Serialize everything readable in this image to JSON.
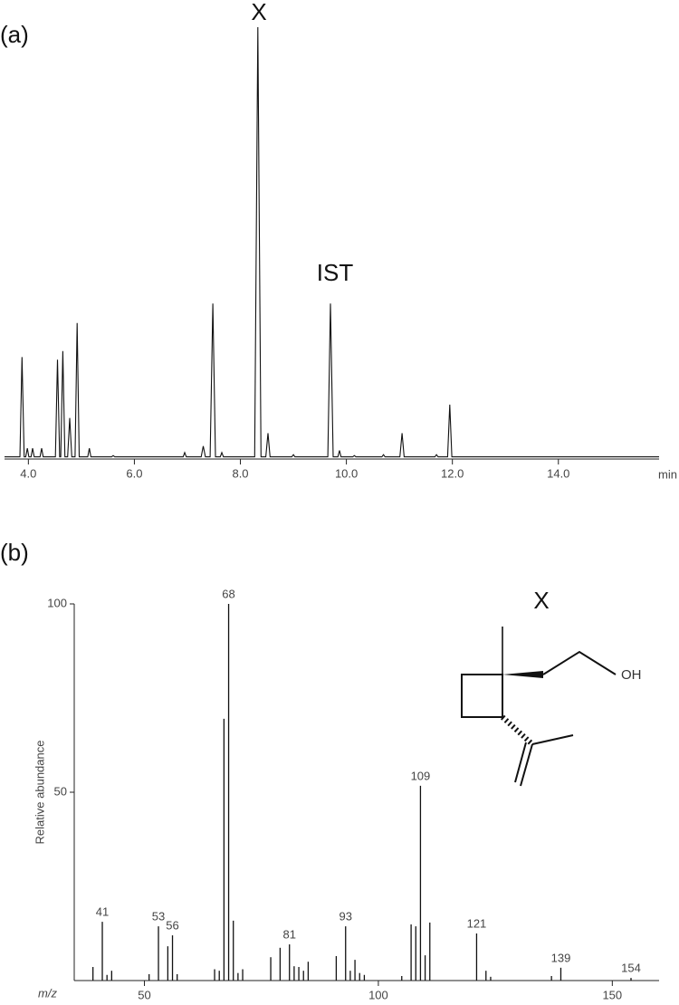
{
  "chart_data": [
    {
      "type": "line",
      "panel": "(a)",
      "xlabel": "min",
      "annotations": [
        "X",
        "IST"
      ],
      "xlim": [
        3.55,
        15.9
      ],
      "ylim": [
        0,
        100
      ],
      "xticks": [
        {
          "value": 4,
          "label": "4.0"
        },
        {
          "value": 6,
          "label": "6.0"
        },
        {
          "value": 8,
          "label": "8.0"
        },
        {
          "value": 10,
          "label": "10.0"
        },
        {
          "value": 12,
          "label": "12.0"
        },
        {
          "value": 14,
          "label": "14.0"
        }
      ],
      "color": "#111111",
      "x": [
        3.55,
        3.84,
        3.88,
        3.92,
        3.95,
        3.98,
        4.01,
        4.05,
        4.08,
        4.11,
        4.22,
        4.25,
        4.28,
        4.51,
        4.55,
        4.59,
        4.61,
        4.65,
        4.69,
        4.74,
        4.78,
        4.82,
        4.88,
        4.92,
        4.96,
        5.12,
        5.15,
        5.18,
        5.57,
        5.6,
        5.63,
        6.92,
        6.95,
        6.98,
        7.26,
        7.3,
        7.34,
        7.43,
        7.48,
        7.53,
        7.62,
        7.65,
        7.68,
        8.27,
        8.33,
        8.39,
        8.48,
        8.52,
        8.56,
        8.97,
        9.0,
        9.03,
        9.65,
        9.7,
        9.75,
        9.84,
        9.87,
        9.9,
        10.12,
        10.15,
        10.18,
        10.67,
        10.7,
        10.73,
        11.01,
        11.05,
        11.09,
        11.67,
        11.7,
        11.73,
        11.91,
        11.95,
        11.99,
        15.9
      ],
      "values": [
        0.5,
        0.5,
        23.6,
        0.5,
        0.5,
        2.5,
        0.5,
        0.5,
        2.5,
        0.5,
        0.5,
        2.5,
        0.5,
        0.5,
        23,
        0.5,
        0.5,
        25,
        0.5,
        0.5,
        9.5,
        0.5,
        0.5,
        31.5,
        0.5,
        0.5,
        2.5,
        0.5,
        0.5,
        0.8,
        0.5,
        0.5,
        1.5,
        0.5,
        0.5,
        3,
        0.5,
        0.5,
        36,
        0.5,
        0.5,
        1.5,
        0.5,
        0.5,
        100,
        0.5,
        0.5,
        6,
        0.5,
        0.5,
        1,
        0.5,
        0.5,
        36,
        0.5,
        0.5,
        2,
        0.5,
        0.5,
        0.8,
        0.5,
        0.5,
        1,
        0.5,
        0.5,
        6,
        0.5,
        0.5,
        1,
        0.5,
        0.5,
        12.6,
        0.5,
        0.5
      ]
    },
    {
      "type": "bar",
      "panel": "(b)",
      "xlabel": "m/z",
      "ylabel": "Relative abundance",
      "inset_label": "X",
      "inset_group": "OH",
      "xlim": [
        35,
        160
      ],
      "ylim": [
        0,
        100
      ],
      "xticks": [
        50,
        100,
        150
      ],
      "yticks": [
        50,
        100
      ],
      "color": "#111111",
      "x": [
        39,
        41,
        42,
        43,
        51,
        53,
        55,
        56,
        57,
        65,
        66,
        67,
        68,
        69,
        70,
        71,
        77,
        79,
        81,
        82,
        83,
        84,
        85,
        91,
        93,
        94,
        95,
        96,
        97,
        105,
        107,
        108,
        109,
        110,
        111,
        121,
        123,
        124,
        137,
        139,
        154
      ],
      "values": [
        3.6,
        15.6,
        1.5,
        2.6,
        1.7,
        14.4,
        9.1,
        12,
        1.7,
        3,
        2.6,
        69.5,
        100,
        15.9,
        2,
        3,
        6.2,
        8.7,
        9.6,
        3.8,
        3.6,
        2.6,
        5,
        6.5,
        14.4,
        2.6,
        5.5,
        2,
        1.5,
        1.2,
        14.9,
        14.4,
        51.7,
        6.7,
        15.4,
        12.5,
        2.6,
        1,
        1.2,
        3.4,
        0.7
      ],
      "peak_labels": [
        null,
        "41",
        null,
        null,
        null,
        "53",
        null,
        "56",
        null,
        null,
        null,
        null,
        "68",
        null,
        null,
        null,
        null,
        null,
        "81",
        null,
        null,
        null,
        null,
        null,
        "93",
        null,
        null,
        null,
        null,
        null,
        null,
        null,
        "109",
        null,
        null,
        "121",
        null,
        null,
        null,
        "139",
        "154"
      ]
    }
  ]
}
